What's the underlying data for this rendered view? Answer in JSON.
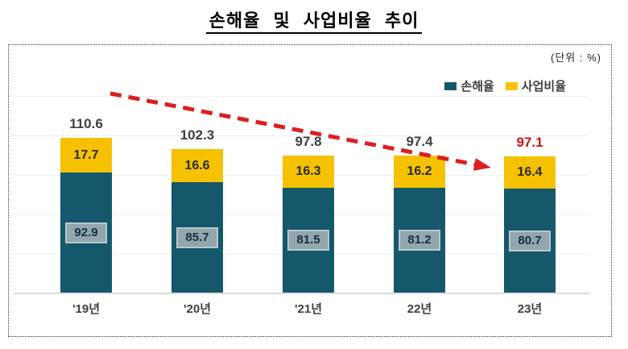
{
  "title": "손해율 및 사업비율 추이",
  "unit_label": "(단위 : %)",
  "colors": {
    "loss_ratio": "#15586b",
    "expense_ratio": "#f6c100",
    "trend_arrow": "#dd1d21",
    "highlight_total": "#c81414",
    "total_label": "#3f3f3f"
  },
  "legend": {
    "items": [
      {
        "label": "손해율",
        "color": "#15586b"
      },
      {
        "label": "사업비율",
        "color": "#f6c100"
      }
    ]
  },
  "chart_data": {
    "type": "bar",
    "stacked": true,
    "title": "손해율 및 사업비율 추이",
    "unit": "(단위 : %)",
    "categories": [
      "'19년",
      "'20년",
      "'21년",
      "22년",
      "23년"
    ],
    "series": [
      {
        "name": "손해율",
        "values": [
          92.9,
          85.7,
          81.5,
          81.2,
          80.7
        ]
      },
      {
        "name": "사업비율",
        "values": [
          17.7,
          16.6,
          16.3,
          16.2,
          16.4
        ]
      }
    ],
    "totals": [
      110.6,
      102.3,
      97.8,
      97.4,
      97.1
    ],
    "highlighted_total_index": 4,
    "grid": true,
    "legend_position": "top-right",
    "annotation": {
      "type": "trend-arrow",
      "direction": "down-right",
      "style": "dashed"
    }
  }
}
